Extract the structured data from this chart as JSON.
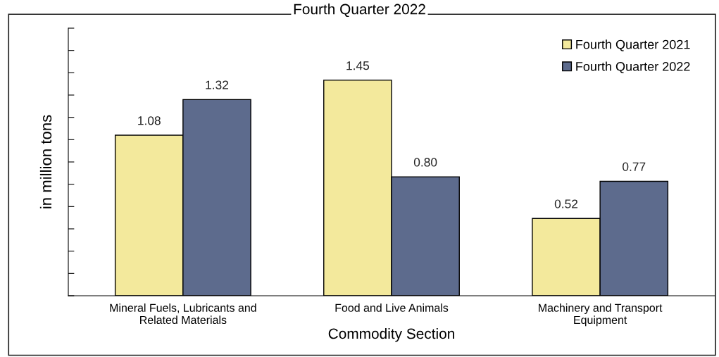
{
  "chart_data": {
    "type": "bar",
    "title": "Fourth Quarter 2022",
    "xlabel": "Commodity Section",
    "ylabel": "in million tons",
    "categories": [
      "Mineral Fuels, Lubricants and\nRelated Materials",
      "Food and Live Animals",
      "Machinery and Transport\nEquipment"
    ],
    "series": [
      {
        "name": "Fourth Quarter 2021",
        "color": "#f3e99c",
        "values": [
          1.08,
          1.45,
          0.52
        ],
        "value_labels": [
          "1.08",
          "1.45",
          "0.52"
        ]
      },
      {
        "name": "Fourth Quarter 2022",
        "color": "#5d6b8d",
        "values": [
          1.32,
          0.8,
          0.77
        ],
        "value_labels": [
          "1.32",
          "0.80",
          "0.77"
        ]
      }
    ],
    "ylim": [
      0,
      1.8
    ],
    "yticks": [
      {
        "value": 0,
        "label": null
      },
      {
        "value": 0.15,
        "label": null
      },
      {
        "value": 0.3,
        "label": null
      },
      {
        "value": 0.45,
        "label": null
      },
      {
        "value": 0.6,
        "label": null
      },
      {
        "value": 0.75,
        "label": null
      },
      {
        "value": 0.9,
        "label": null
      },
      {
        "value": 1.05,
        "label": null
      },
      {
        "value": 1.2,
        "label": null
      },
      {
        "value": 1.35,
        "label": null
      },
      {
        "value": 1.5,
        "label": null
      },
      {
        "value": 1.65,
        "label": null
      },
      {
        "value": 1.8,
        "label": null
      }
    ],
    "tick_labels": "x",
    "legend": "top right",
    "grid": false
  }
}
